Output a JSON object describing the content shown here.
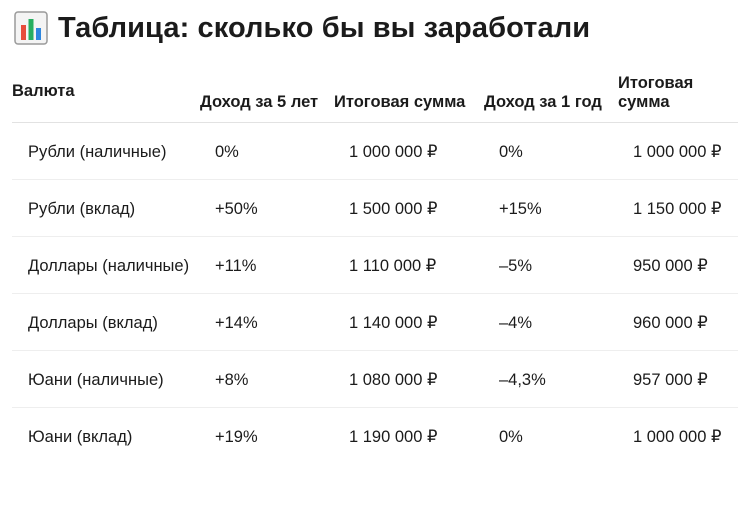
{
  "page": {
    "title": "Таблица: сколько бы вы заработали"
  },
  "icons": {
    "title_icon": "bar-chart-icon"
  },
  "colors": {
    "icon_bars": [
      "#e74c3c",
      "#27ae60",
      "#2e86de"
    ]
  },
  "table": {
    "headers": [
      "Валюта",
      "Доход за 5 лет",
      "Итоговая сумма",
      "Доход за 1 год",
      "Итоговая сумма"
    ],
    "rows": [
      [
        "Рубли (наличные)",
        "0%",
        "1 000 000 ₽",
        "0%",
        "1 000 000 ₽"
      ],
      [
        "Рубли (вклад)",
        "+50%",
        "1 500 000 ₽",
        "+15%",
        "1 150 000 ₽"
      ],
      [
        "Доллары (наличные)",
        "+11%",
        "1 110 000 ₽",
        "–5%",
        "950 000 ₽"
      ],
      [
        "Доллары (вклад)",
        "+14%",
        "1 140 000 ₽",
        "–4%",
        "960 000 ₽"
      ],
      [
        "Юани (наличные)",
        "+8%",
        "1 080 000 ₽",
        "–4,3%",
        "957 000 ₽"
      ],
      [
        "Юани (вклад)",
        "+19%",
        "1 190 000 ₽",
        "0%",
        "1 000 000 ₽"
      ]
    ]
  }
}
